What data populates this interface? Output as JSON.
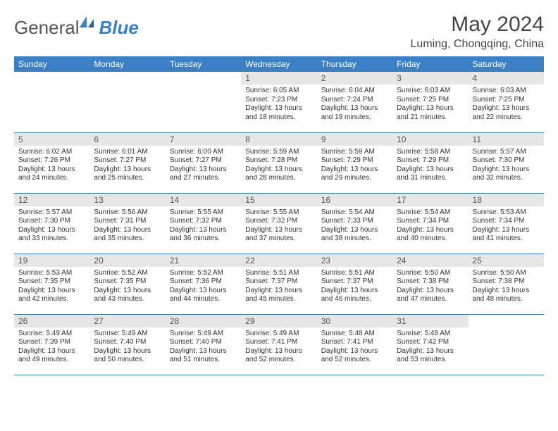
{
  "logo": {
    "text_general": "General",
    "text_blue": "Blue"
  },
  "header": {
    "month_title": "May 2024",
    "location": "Luming, Chongqing, China"
  },
  "colors": {
    "header_bg": "#3b7fc4",
    "header_fg": "#ffffff",
    "daynum_bg": "#e6e6e6",
    "border": "#3b7fc4",
    "text": "#333333",
    "logo_gray": "#555555",
    "logo_blue": "#3b7fc4"
  },
  "weekdays": [
    "Sunday",
    "Monday",
    "Tuesday",
    "Wednesday",
    "Thursday",
    "Friday",
    "Saturday"
  ],
  "weeks": [
    [
      null,
      null,
      null,
      {
        "n": "1",
        "sr": "Sunrise: 6:05 AM",
        "ss": "Sunset: 7:23 PM",
        "d1": "Daylight: 13 hours",
        "d2": "and 18 minutes."
      },
      {
        "n": "2",
        "sr": "Sunrise: 6:04 AM",
        "ss": "Sunset: 7:24 PM",
        "d1": "Daylight: 13 hours",
        "d2": "and 19 minutes."
      },
      {
        "n": "3",
        "sr": "Sunrise: 6:03 AM",
        "ss": "Sunset: 7:25 PM",
        "d1": "Daylight: 13 hours",
        "d2": "and 21 minutes."
      },
      {
        "n": "4",
        "sr": "Sunrise: 6:03 AM",
        "ss": "Sunset: 7:25 PM",
        "d1": "Daylight: 13 hours",
        "d2": "and 22 minutes."
      }
    ],
    [
      {
        "n": "5",
        "sr": "Sunrise: 6:02 AM",
        "ss": "Sunset: 7:26 PM",
        "d1": "Daylight: 13 hours",
        "d2": "and 24 minutes."
      },
      {
        "n": "6",
        "sr": "Sunrise: 6:01 AM",
        "ss": "Sunset: 7:27 PM",
        "d1": "Daylight: 13 hours",
        "d2": "and 25 minutes."
      },
      {
        "n": "7",
        "sr": "Sunrise: 6:00 AM",
        "ss": "Sunset: 7:27 PM",
        "d1": "Daylight: 13 hours",
        "d2": "and 27 minutes."
      },
      {
        "n": "8",
        "sr": "Sunrise: 5:59 AM",
        "ss": "Sunset: 7:28 PM",
        "d1": "Daylight: 13 hours",
        "d2": "and 28 minutes."
      },
      {
        "n": "9",
        "sr": "Sunrise: 5:59 AM",
        "ss": "Sunset: 7:29 PM",
        "d1": "Daylight: 13 hours",
        "d2": "and 29 minutes."
      },
      {
        "n": "10",
        "sr": "Sunrise: 5:58 AM",
        "ss": "Sunset: 7:29 PM",
        "d1": "Daylight: 13 hours",
        "d2": "and 31 minutes."
      },
      {
        "n": "11",
        "sr": "Sunrise: 5:57 AM",
        "ss": "Sunset: 7:30 PM",
        "d1": "Daylight: 13 hours",
        "d2": "and 32 minutes."
      }
    ],
    [
      {
        "n": "12",
        "sr": "Sunrise: 5:57 AM",
        "ss": "Sunset: 7:30 PM",
        "d1": "Daylight: 13 hours",
        "d2": "and 33 minutes."
      },
      {
        "n": "13",
        "sr": "Sunrise: 5:56 AM",
        "ss": "Sunset: 7:31 PM",
        "d1": "Daylight: 13 hours",
        "d2": "and 35 minutes."
      },
      {
        "n": "14",
        "sr": "Sunrise: 5:55 AM",
        "ss": "Sunset: 7:32 PM",
        "d1": "Daylight: 13 hours",
        "d2": "and 36 minutes."
      },
      {
        "n": "15",
        "sr": "Sunrise: 5:55 AM",
        "ss": "Sunset: 7:32 PM",
        "d1": "Daylight: 13 hours",
        "d2": "and 37 minutes."
      },
      {
        "n": "16",
        "sr": "Sunrise: 5:54 AM",
        "ss": "Sunset: 7:33 PM",
        "d1": "Daylight: 13 hours",
        "d2": "and 38 minutes."
      },
      {
        "n": "17",
        "sr": "Sunrise: 5:54 AM",
        "ss": "Sunset: 7:34 PM",
        "d1": "Daylight: 13 hours",
        "d2": "and 40 minutes."
      },
      {
        "n": "18",
        "sr": "Sunrise: 5:53 AM",
        "ss": "Sunset: 7:34 PM",
        "d1": "Daylight: 13 hours",
        "d2": "and 41 minutes."
      }
    ],
    [
      {
        "n": "19",
        "sr": "Sunrise: 5:53 AM",
        "ss": "Sunset: 7:35 PM",
        "d1": "Daylight: 13 hours",
        "d2": "and 42 minutes."
      },
      {
        "n": "20",
        "sr": "Sunrise: 5:52 AM",
        "ss": "Sunset: 7:35 PM",
        "d1": "Daylight: 13 hours",
        "d2": "and 43 minutes."
      },
      {
        "n": "21",
        "sr": "Sunrise: 5:52 AM",
        "ss": "Sunset: 7:36 PM",
        "d1": "Daylight: 13 hours",
        "d2": "and 44 minutes."
      },
      {
        "n": "22",
        "sr": "Sunrise: 5:51 AM",
        "ss": "Sunset: 7:37 PM",
        "d1": "Daylight: 13 hours",
        "d2": "and 45 minutes."
      },
      {
        "n": "23",
        "sr": "Sunrise: 5:51 AM",
        "ss": "Sunset: 7:37 PM",
        "d1": "Daylight: 13 hours",
        "d2": "and 46 minutes."
      },
      {
        "n": "24",
        "sr": "Sunrise: 5:50 AM",
        "ss": "Sunset: 7:38 PM",
        "d1": "Daylight: 13 hours",
        "d2": "and 47 minutes."
      },
      {
        "n": "25",
        "sr": "Sunrise: 5:50 AM",
        "ss": "Sunset: 7:38 PM",
        "d1": "Daylight: 13 hours",
        "d2": "and 48 minutes."
      }
    ],
    [
      {
        "n": "26",
        "sr": "Sunrise: 5:49 AM",
        "ss": "Sunset: 7:39 PM",
        "d1": "Daylight: 13 hours",
        "d2": "and 49 minutes."
      },
      {
        "n": "27",
        "sr": "Sunrise: 5:49 AM",
        "ss": "Sunset: 7:40 PM",
        "d1": "Daylight: 13 hours",
        "d2": "and 50 minutes."
      },
      {
        "n": "28",
        "sr": "Sunrise: 5:49 AM",
        "ss": "Sunset: 7:40 PM",
        "d1": "Daylight: 13 hours",
        "d2": "and 51 minutes."
      },
      {
        "n": "29",
        "sr": "Sunrise: 5:49 AM",
        "ss": "Sunset: 7:41 PM",
        "d1": "Daylight: 13 hours",
        "d2": "and 52 minutes."
      },
      {
        "n": "30",
        "sr": "Sunrise: 5:48 AM",
        "ss": "Sunset: 7:41 PM",
        "d1": "Daylight: 13 hours",
        "d2": "and 52 minutes."
      },
      {
        "n": "31",
        "sr": "Sunrise: 5:48 AM",
        "ss": "Sunset: 7:42 PM",
        "d1": "Daylight: 13 hours",
        "d2": "and 53 minutes."
      },
      null
    ]
  ]
}
